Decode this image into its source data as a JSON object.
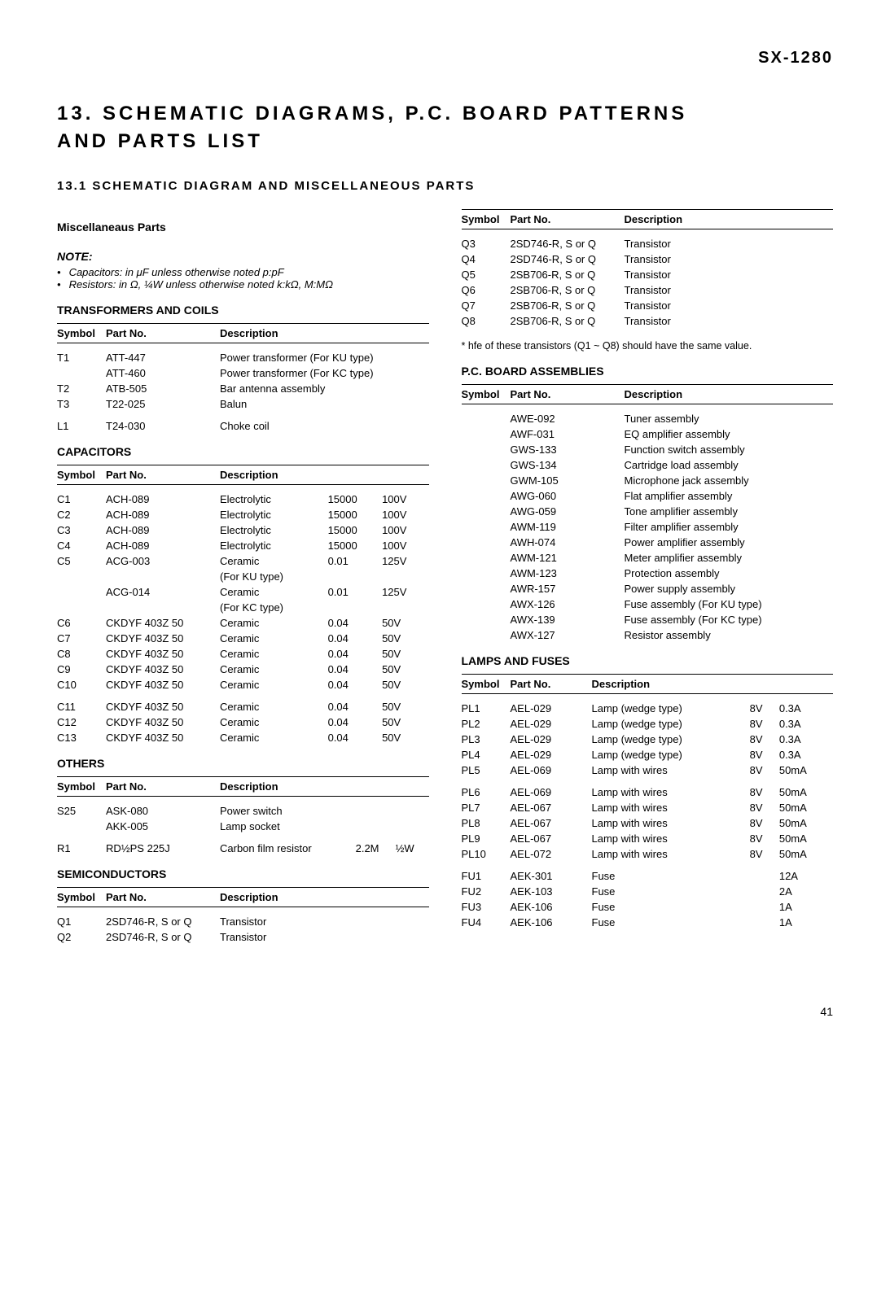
{
  "model": "SX-1280",
  "title_line1": "13. SCHEMATIC DIAGRAMS, P.C. BOARD PATTERNS",
  "title_line2": "AND PARTS LIST",
  "section_13_1": "13.1 SCHEMATIC DIAGRAM AND MISCELLANEOUS PARTS",
  "misc_parts_heading": "Miscellaneaus Parts",
  "note_heading": "NOTE:",
  "note1": "Capacitors: in μF unless otherwise noted p:pF",
  "note2": "Resistors: in Ω, ¼W unless otherwise noted k:kΩ, M:MΩ",
  "headers": {
    "symbol": "Symbol",
    "part_no": "Part No.",
    "description": "Description"
  },
  "transformers": {
    "title": "TRANSFORMERS AND COILS",
    "rows": [
      {
        "s": "T1",
        "p": "ATT-447",
        "d": "Power transformer (For KU type)"
      },
      {
        "s": "",
        "p": "ATT-460",
        "d": "Power transformer (For KC type)"
      },
      {
        "s": "T2",
        "p": "ATB-505",
        "d": "Bar antenna assembly"
      },
      {
        "s": "T3",
        "p": "T22-025",
        "d": "Balun"
      },
      {
        "s": "",
        "p": "",
        "d": ""
      },
      {
        "s": "L1",
        "p": "T24-030",
        "d": "Choke coil"
      }
    ]
  },
  "capacitors": {
    "title": "CAPACITORS",
    "rows": [
      {
        "s": "C1",
        "p": "ACH-089",
        "d": "Electrolytic",
        "v1": "15000",
        "v2": "100V"
      },
      {
        "s": "C2",
        "p": "ACH-089",
        "d": "Electrolytic",
        "v1": "15000",
        "v2": "100V"
      },
      {
        "s": "C3",
        "p": "ACH-089",
        "d": "Electrolytic",
        "v1": "15000",
        "v2": "100V"
      },
      {
        "s": "C4",
        "p": "ACH-089",
        "d": "Electrolytic",
        "v1": "15000",
        "v2": "100V"
      },
      {
        "s": "C5",
        "p": "ACG-003",
        "d": "Ceramic",
        "v1": "0.01",
        "v2": "125V"
      },
      {
        "s": "",
        "p": "",
        "d": "(For KU type)",
        "v1": "",
        "v2": ""
      },
      {
        "s": "",
        "p": "ACG-014",
        "d": "Ceramic",
        "v1": "0.01",
        "v2": "125V"
      },
      {
        "s": "",
        "p": "",
        "d": "(For KC type)",
        "v1": "",
        "v2": ""
      },
      {
        "s": "C6",
        "p": "CKDYF 403Z 50",
        "d": "Ceramic",
        "v1": "0.04",
        "v2": "50V"
      },
      {
        "s": "C7",
        "p": "CKDYF 403Z 50",
        "d": "Ceramic",
        "v1": "0.04",
        "v2": "50V"
      },
      {
        "s": "C8",
        "p": "CKDYF 403Z 50",
        "d": "Ceramic",
        "v1": "0.04",
        "v2": "50V"
      },
      {
        "s": "C9",
        "p": "CKDYF 403Z 50",
        "d": "Ceramic",
        "v1": "0.04",
        "v2": "50V"
      },
      {
        "s": "C10",
        "p": "CKDYF 403Z 50",
        "d": "Ceramic",
        "v1": "0.04",
        "v2": "50V"
      },
      {
        "s": "",
        "p": "",
        "d": "",
        "v1": "",
        "v2": ""
      },
      {
        "s": "C11",
        "p": "CKDYF 403Z 50",
        "d": "Ceramic",
        "v1": "0.04",
        "v2": "50V"
      },
      {
        "s": "C12",
        "p": "CKDYF 403Z 50",
        "d": "Ceramic",
        "v1": "0.04",
        "v2": "50V"
      },
      {
        "s": "C13",
        "p": "CKDYF 403Z 50",
        "d": "Ceramic",
        "v1": "0.04",
        "v2": "50V"
      }
    ]
  },
  "others": {
    "title": "OTHERS",
    "rows": [
      {
        "s": "S25",
        "p": "ASK-080",
        "d": "Power switch",
        "v1": "",
        "v2": ""
      },
      {
        "s": "",
        "p": "AKK-005",
        "d": "Lamp socket",
        "v1": "",
        "v2": ""
      },
      {
        "s": "",
        "p": "",
        "d": "",
        "v1": "",
        "v2": ""
      },
      {
        "s": "R1",
        "p": "RD½PS 225J",
        "d": "Carbon film resistor",
        "v1": "2.2M",
        "v2": "½W"
      }
    ]
  },
  "semiconductors": {
    "title": "SEMICONDUCTORS",
    "rows_left": [
      {
        "s": "Q1",
        "p": "2SD746-R, S or Q",
        "d": "Transistor"
      },
      {
        "s": "Q2",
        "p": "2SD746-R, S or Q",
        "d": "Transistor"
      }
    ],
    "rows_right": [
      {
        "s": "Q3",
        "p": "2SD746-R, S or Q",
        "d": "Transistor"
      },
      {
        "s": "Q4",
        "p": "2SD746-R, S or Q",
        "d": "Transistor"
      },
      {
        "s": "Q5",
        "p": "2SB706-R, S or Q",
        "d": "Transistor"
      },
      {
        "s": "Q6",
        "p": "2SB706-R, S or Q",
        "d": "Transistor"
      },
      {
        "s": "Q7",
        "p": "2SB706-R, S or Q",
        "d": "Transistor"
      },
      {
        "s": "Q8",
        "p": "2SB706-R, S or Q",
        "d": "Transistor"
      }
    ],
    "footnote": "* hfe of these transistors (Q1 ~ Q8) should have the same value."
  },
  "pcb": {
    "title": "P.C. BOARD ASSEMBLIES",
    "rows": [
      {
        "s": "",
        "p": "AWE-092",
        "d": "Tuner assembly"
      },
      {
        "s": "",
        "p": "AWF-031",
        "d": "EQ amplifier assembly"
      },
      {
        "s": "",
        "p": "GWS-133",
        "d": "Function switch assembly"
      },
      {
        "s": "",
        "p": "GWS-134",
        "d": "Cartridge load assembly"
      },
      {
        "s": "",
        "p": "GWM-105",
        "d": "Microphone jack assembly"
      },
      {
        "s": "",
        "p": "AWG-060",
        "d": "Flat amplifier assembly"
      },
      {
        "s": "",
        "p": "AWG-059",
        "d": "Tone amplifier assembly"
      },
      {
        "s": "",
        "p": "AWM-119",
        "d": "Filter amplifier assembly"
      },
      {
        "s": "",
        "p": "AWH-074",
        "d": "Power amplifier assembly"
      },
      {
        "s": "",
        "p": "AWM-121",
        "d": "Meter amplifier assembly"
      },
      {
        "s": "",
        "p": "AWM-123",
        "d": "Protection assembly"
      },
      {
        "s": "",
        "p": "AWR-157",
        "d": "Power supply assembly"
      },
      {
        "s": "",
        "p": "AWX-126",
        "d": "Fuse assembly (For KU type)"
      },
      {
        "s": "",
        "p": "AWX-139",
        "d": "Fuse assembly (For KC type)"
      },
      {
        "s": "",
        "p": "AWX-127",
        "d": "Resistor assembly"
      }
    ]
  },
  "lamps": {
    "title": "LAMPS AND FUSES",
    "rows": [
      {
        "s": "PL1",
        "p": "AEL-029",
        "d": "Lamp (wedge type)",
        "v1": "8V",
        "v2": "0.3A"
      },
      {
        "s": "PL2",
        "p": "AEL-029",
        "d": "Lamp (wedge type)",
        "v1": "8V",
        "v2": "0.3A"
      },
      {
        "s": "PL3",
        "p": "AEL-029",
        "d": "Lamp (wedge type)",
        "v1": "8V",
        "v2": "0.3A"
      },
      {
        "s": "PL4",
        "p": "AEL-029",
        "d": "Lamp (wedge type)",
        "v1": "8V",
        "v2": "0.3A"
      },
      {
        "s": "PL5",
        "p": "AEL-069",
        "d": "Lamp with wires",
        "v1": "8V",
        "v2": "50mA"
      },
      {
        "s": "",
        "p": "",
        "d": "",
        "v1": "",
        "v2": ""
      },
      {
        "s": "PL6",
        "p": "AEL-069",
        "d": "Lamp with wires",
        "v1": "8V",
        "v2": "50mA"
      },
      {
        "s": "PL7",
        "p": "AEL-067",
        "d": "Lamp with wires",
        "v1": "8V",
        "v2": "50mA"
      },
      {
        "s": "PL8",
        "p": "AEL-067",
        "d": "Lamp with wires",
        "v1": "8V",
        "v2": "50mA"
      },
      {
        "s": "PL9",
        "p": "AEL-067",
        "d": "Lamp with wires",
        "v1": "8V",
        "v2": "50mA"
      },
      {
        "s": "PL10",
        "p": "AEL-072",
        "d": "Lamp with wires",
        "v1": "8V",
        "v2": "50mA"
      },
      {
        "s": "",
        "p": "",
        "d": "",
        "v1": "",
        "v2": ""
      },
      {
        "s": "FU1",
        "p": "AEK-301",
        "d": "Fuse",
        "v1": "",
        "v2": "12A"
      },
      {
        "s": "FU2",
        "p": "AEK-103",
        "d": "Fuse",
        "v1": "",
        "v2": "2A"
      },
      {
        "s": "FU3",
        "p": "AEK-106",
        "d": "Fuse",
        "v1": "",
        "v2": "1A"
      },
      {
        "s": "FU4",
        "p": "AEK-106",
        "d": "Fuse",
        "v1": "",
        "v2": "1A"
      }
    ]
  },
  "page_number": "41"
}
